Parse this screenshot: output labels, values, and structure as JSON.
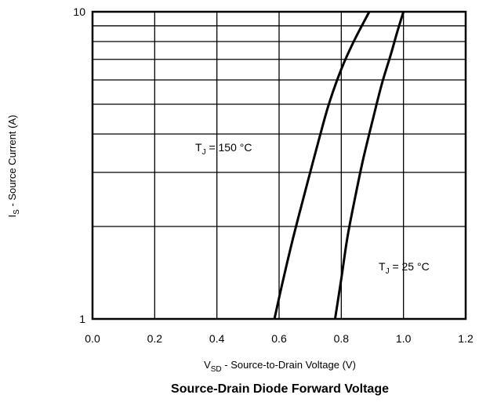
{
  "chart_data": {
    "type": "line",
    "title": "Source-Drain Diode Forward Voltage",
    "xlabel": {
      "symbol": "V",
      "subscript": "SD",
      "text": " - Source-to-Drain Voltage (V)"
    },
    "ylabel": {
      "symbol": "I",
      "subscript": "S",
      "text": " - Source Current (A)"
    },
    "xlim": [
      0.0,
      1.2
    ],
    "ylim": [
      1,
      10
    ],
    "yscale": "log",
    "grid": true,
    "x_ticks": [
      {
        "value": 0.0,
        "label": "0.0"
      },
      {
        "value": 0.2,
        "label": "0.2"
      },
      {
        "value": 0.4,
        "label": "0.4"
      },
      {
        "value": 0.6,
        "label": "0.6"
      },
      {
        "value": 0.8,
        "label": "0.8"
      },
      {
        "value": 1.0,
        "label": "1.0"
      },
      {
        "value": 1.2,
        "label": "1.2"
      }
    ],
    "y_ticks": [
      {
        "value": 1,
        "label": "1"
      },
      {
        "value": 10,
        "label": "10"
      }
    ],
    "y_minor_gridlines": [
      2,
      3,
      4,
      5,
      6,
      7,
      8,
      9
    ],
    "series": [
      {
        "name": "TJ = 150 °C",
        "label_symbol": "T",
        "label_subscript": "J",
        "label_text": " = 150 °C",
        "x": [
          0.585,
          0.61,
          0.64,
          0.67,
          0.7,
          0.73,
          0.76,
          0.8,
          0.84,
          0.89
        ],
        "y": [
          1,
          1.3,
          1.75,
          2.3,
          3.0,
          3.9,
          5.0,
          6.5,
          8.0,
          10
        ]
      },
      {
        "name": "TJ = 25 °C",
        "label_symbol": "T",
        "label_subscript": "J",
        "label_text": " = 25 °C",
        "x": [
          0.78,
          0.8,
          0.82,
          0.845,
          0.87,
          0.9,
          0.93,
          0.96,
          0.98,
          1.0
        ],
        "y": [
          1,
          1.35,
          1.85,
          2.5,
          3.3,
          4.4,
          5.8,
          7.3,
          8.6,
          10
        ]
      }
    ]
  }
}
